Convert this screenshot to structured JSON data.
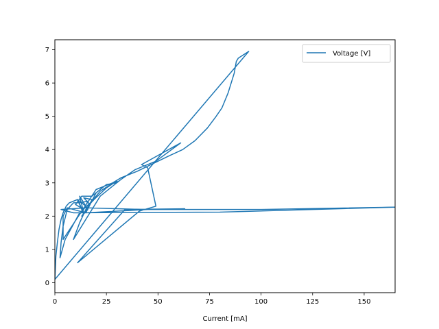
{
  "chart_data": {
    "type": "line",
    "xlabel": "Current [mA]",
    "ylabel": "",
    "xlim": [
      0,
      165
    ],
    "ylim": [
      -0.3,
      7.3
    ],
    "xticks": [
      0,
      25,
      50,
      75,
      100,
      125,
      150
    ],
    "yticks": [
      0,
      1,
      2,
      3,
      4,
      5,
      6,
      7
    ],
    "grid": false,
    "legend_position": "top-right",
    "series": [
      {
        "name": "Voltage [V]",
        "color": "#1f77b4",
        "points": [
          [
            0,
            0.1
          ],
          [
            0.5,
            0.8
          ],
          [
            1.2,
            1.2
          ],
          [
            2,
            1.6
          ],
          [
            3,
            1.9
          ],
          [
            4,
            2.1
          ],
          [
            5.5,
            2.3
          ],
          [
            7,
            2.4
          ],
          [
            9,
            2.45
          ],
          [
            11,
            2.5
          ],
          [
            13,
            2.4
          ],
          [
            15,
            2.3
          ],
          [
            13,
            2.2
          ],
          [
            11,
            2.5
          ],
          [
            14,
            2.1
          ],
          [
            12,
            2.6
          ],
          [
            16,
            2.2
          ],
          [
            13,
            2.0
          ],
          [
            17,
            2.35
          ],
          [
            14,
            2.55
          ],
          [
            18,
            2.5
          ],
          [
            15,
            2.1
          ],
          [
            20,
            2.7
          ],
          [
            24,
            2.9
          ],
          [
            28,
            3.0
          ],
          [
            30,
            3.05
          ],
          [
            25,
            2.85
          ],
          [
            19,
            2.5
          ],
          [
            16,
            2.3
          ],
          [
            22,
            2.75
          ],
          [
            27,
            2.95
          ],
          [
            31,
            3.05
          ],
          [
            22,
            2.6
          ],
          [
            9,
            1.3
          ],
          [
            12,
            1.8
          ],
          [
            15,
            2.2
          ],
          [
            18,
            2.45
          ],
          [
            12,
            2.1
          ],
          [
            5,
            1.3
          ],
          [
            2.5,
            0.75
          ],
          [
            3,
            1.2
          ],
          [
            4,
            1.7
          ],
          [
            6,
            2.2
          ],
          [
            9,
            2.4
          ],
          [
            12,
            2.4
          ],
          [
            16,
            2.45
          ],
          [
            14,
            2.2
          ],
          [
            10,
            2.35
          ],
          [
            13,
            2.6
          ],
          [
            18,
            2.6
          ],
          [
            22,
            2.8
          ],
          [
            25,
            2.95
          ],
          [
            30,
            3.0
          ],
          [
            32,
            3.1
          ],
          [
            39,
            3.4
          ],
          [
            49,
            3.65
          ],
          [
            61,
            4.2
          ],
          [
            42,
            3.55
          ],
          [
            45,
            3.45
          ],
          [
            49,
            2.3
          ],
          [
            41,
            2.15
          ],
          [
            11,
            0.6
          ],
          [
            34,
            2.2
          ],
          [
            63,
            2.22
          ],
          [
            43,
            2.2
          ],
          [
            15,
            2.25
          ],
          [
            3,
            2.2
          ],
          [
            9,
            2.1
          ],
          [
            80,
            2.12
          ],
          [
            165,
            2.27
          ],
          [
            100,
            2.2
          ],
          [
            45,
            2.2
          ],
          [
            15,
            2.1
          ],
          [
            6,
            2.25
          ],
          [
            4,
            2.0
          ],
          [
            4,
            1.3
          ],
          [
            20,
            2.8
          ],
          [
            28,
            3.0
          ],
          [
            32,
            3.15
          ],
          [
            40,
            3.35
          ],
          [
            55,
            3.8
          ],
          [
            62,
            4.0
          ],
          [
            68,
            4.27
          ],
          [
            74,
            4.65
          ],
          [
            78,
            4.98
          ],
          [
            81,
            5.25
          ],
          [
            84,
            5.7
          ],
          [
            86,
            6.1
          ],
          [
            87,
            6.3
          ],
          [
            88,
            6.65
          ],
          [
            89,
            6.75
          ],
          [
            94,
            6.95
          ],
          [
            0,
            0.1
          ],
          [
            0,
            0.4
          ]
        ]
      }
    ]
  }
}
